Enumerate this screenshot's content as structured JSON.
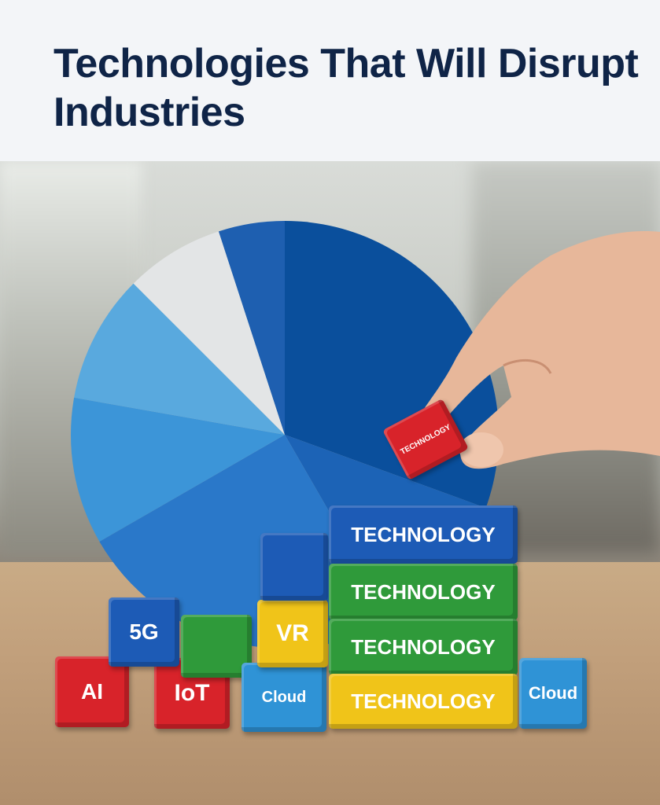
{
  "title": "Technologies That Will Disrupt Industries",
  "colors": {
    "title": "#0f2447",
    "header_bg": "#f3f5f8"
  },
  "pie_colors": [
    "#0a4f9c",
    "#1c63b6",
    "#2a78c9",
    "#3c95d8",
    "#59a9de",
    "#e3e5e6",
    "#1e5fb0"
  ],
  "blocks": [
    {
      "label": "AI",
      "color": "#d8232a"
    },
    {
      "label": "IoT",
      "color": "#d8232a"
    },
    {
      "label": "5G",
      "color": "#1d5bb6"
    },
    {
      "label": "",
      "color": "#2f9a3a"
    },
    {
      "label": "Cloud",
      "color": "#2f93d6"
    },
    {
      "label": "VR",
      "color": "#f0c419"
    },
    {
      "label": "",
      "color": "#1d5bb6"
    },
    {
      "label": "TECHNOLOGY",
      "color": "#1d5bb6"
    },
    {
      "label": "TECHNOLOGY",
      "color": "#2f9a3a"
    },
    {
      "label": "TECHNOLOGY",
      "color": "#2f9a3a"
    },
    {
      "label": "TECHNOLOGY",
      "color": "#f0c419"
    },
    {
      "label": "Cloud",
      "color": "#2f93d6"
    },
    {
      "label": "TECHNOLOGY",
      "color": "#d8232a"
    }
  ]
}
